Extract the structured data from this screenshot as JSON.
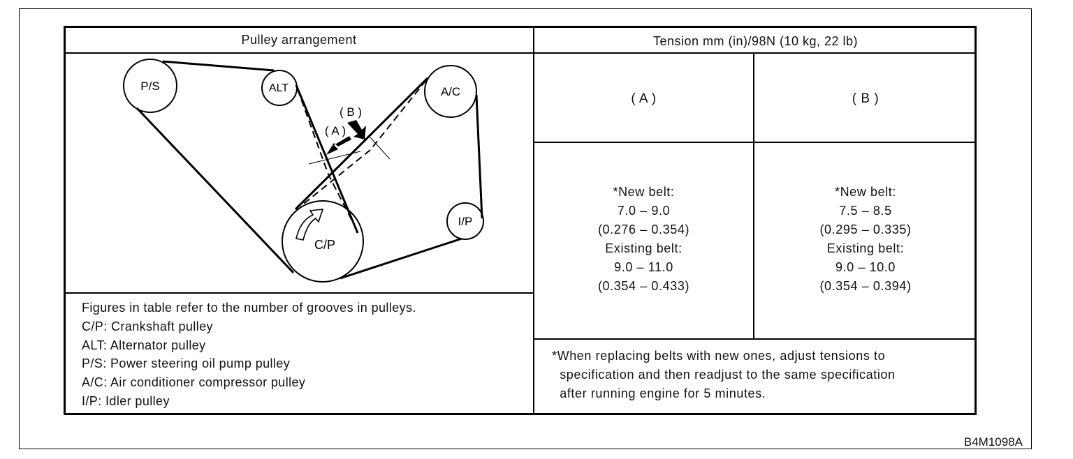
{
  "table": {
    "left_header": "Pulley arrangement",
    "right_header": "Tension mm (in)/98N (10 kg, 22 lb)",
    "col_a_header": "( A )",
    "col_b_header": "( B )"
  },
  "diagram": {
    "pulleys": {
      "ps": "P/S",
      "alt": "ALT",
      "ac": "A/C",
      "ip": "I/P",
      "cp": "C/P"
    },
    "markers": {
      "a": "( A )",
      "b": "( B )"
    }
  },
  "legend": [
    "Figures in table refer to the number of grooves in pulleys.",
    "C/P: Crankshaft pulley",
    "ALT: Alternator pulley",
    "P/S: Power steering oil pump pulley",
    "A/C: Air conditioner compressor pulley",
    "I/P: Idler pulley"
  ],
  "values_a": [
    "*New belt:",
    "7.0 – 9.0",
    "(0.276 – 0.354)",
    "Existing belt:",
    "9.0 – 11.0",
    "(0.354 – 0.433)"
  ],
  "values_b": [
    "*New belt:",
    "7.5 – 8.5",
    "(0.295 – 0.335)",
    "Existing belt:",
    "9.0 – 10.0",
    "(0.354 – 0.394)"
  ],
  "footnote": [
    "*When replacing belts with new ones, adjust tensions to",
    "  specification and then readjust to the same specification",
    "  after running engine for 5 minutes."
  ],
  "figure_code": "B4M1098A"
}
